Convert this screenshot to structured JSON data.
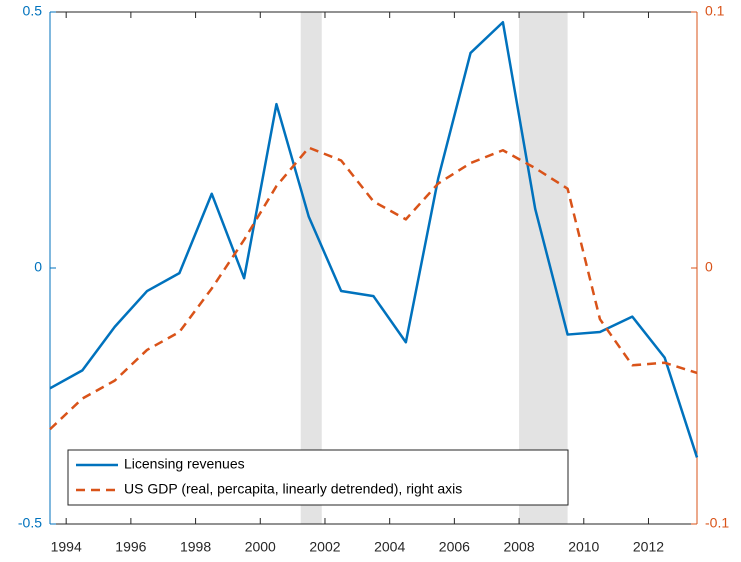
{
  "chart_data": {
    "type": "line",
    "x": [
      1993.5,
      1994.5,
      1995.5,
      1996.5,
      1997.5,
      1998.5,
      1999.5,
      2000.5,
      2001.5,
      2002.5,
      2003.5,
      2004.5,
      2005.5,
      2006.5,
      2007.5,
      2008.5,
      2009.5,
      2010.5,
      2011.5,
      2012.5,
      2013.5
    ],
    "xlim": [
      1993.5,
      2013.5
    ],
    "xticks": [
      1994,
      1996,
      1998,
      2000,
      2002,
      2004,
      2006,
      2008,
      2010,
      2012
    ],
    "ylim": [
      -0.5,
      0.5
    ],
    "yticks": [
      -0.5,
      0,
      0.5
    ],
    "y2lim": [
      -0.1,
      0.1
    ],
    "y2ticks": [
      -0.1,
      0,
      0.1
    ],
    "shaded_periods": [
      [
        2001.25,
        2001.9
      ],
      [
        2008,
        2009.5
      ]
    ],
    "legend": "lower left",
    "series": [
      {
        "name": "Licensing revenues",
        "color": "#0072bd",
        "style": "solid",
        "values": [
          -0.235,
          -0.2,
          -0.115,
          -0.045,
          -0.01,
          0.145,
          -0.02,
          0.32,
          0.1,
          -0.045,
          -0.055,
          -0.145,
          0.175,
          0.42,
          0.48,
          0.115,
          -0.13,
          -0.125,
          -0.095,
          -0.175,
          -0.37
        ]
      },
      {
        "name": "US GDP (real, percapita, linearly detrended), right axis",
        "color": "#d95319",
        "style": "dashed",
        "axis": "y2",
        "values": [
          -0.063,
          -0.051,
          -0.044,
          -0.032,
          -0.025,
          -0.008,
          0.011,
          0.032,
          0.047,
          0.042,
          0.026,
          0.019,
          0.033,
          0.041,
          0.046,
          0.039,
          0.031,
          -0.02,
          -0.038,
          -0.037,
          -0.041
        ]
      }
    ]
  }
}
